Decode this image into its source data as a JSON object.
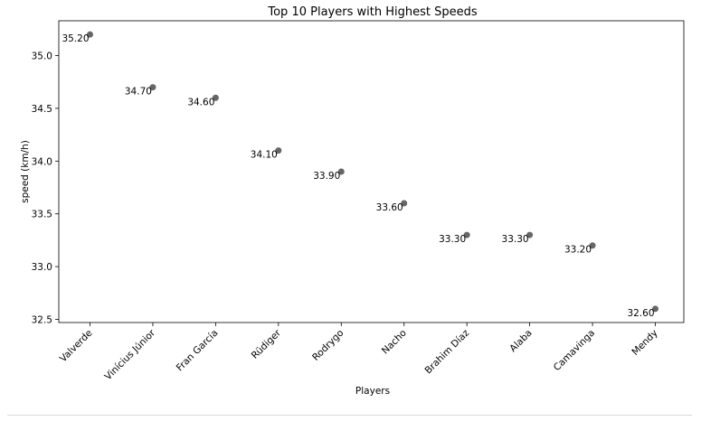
{
  "chart_data": {
    "type": "scatter",
    "title": "Top 10 Players with Highest Speeds",
    "xlabel": "Players",
    "ylabel": "speed (km/h)",
    "categories": [
      "Valverde",
      "Vinícius Júnior",
      "Fran García",
      "Rüdiger",
      "Rodrygo",
      "Nacho",
      "Brahim Díaz",
      "Alaba",
      "Camavinga",
      "Mendy"
    ],
    "values": [
      35.2,
      34.7,
      34.6,
      34.1,
      33.9,
      33.6,
      33.3,
      33.3,
      33.2,
      32.6
    ],
    "data_labels": [
      "35.20",
      "34.70",
      "34.60",
      "34.10",
      "33.90",
      "33.60",
      "33.30",
      "33.30",
      "33.20",
      "32.60"
    ],
    "ylim": [
      32.47,
      35.33
    ],
    "yticks": [
      32.5,
      33.0,
      33.5,
      34.0,
      34.5,
      35.0
    ],
    "ytick_labels": [
      "32.5",
      "33.0",
      "33.5",
      "34.0",
      "34.5",
      "35.0"
    ],
    "grid": false,
    "marker_color": "#666666"
  }
}
